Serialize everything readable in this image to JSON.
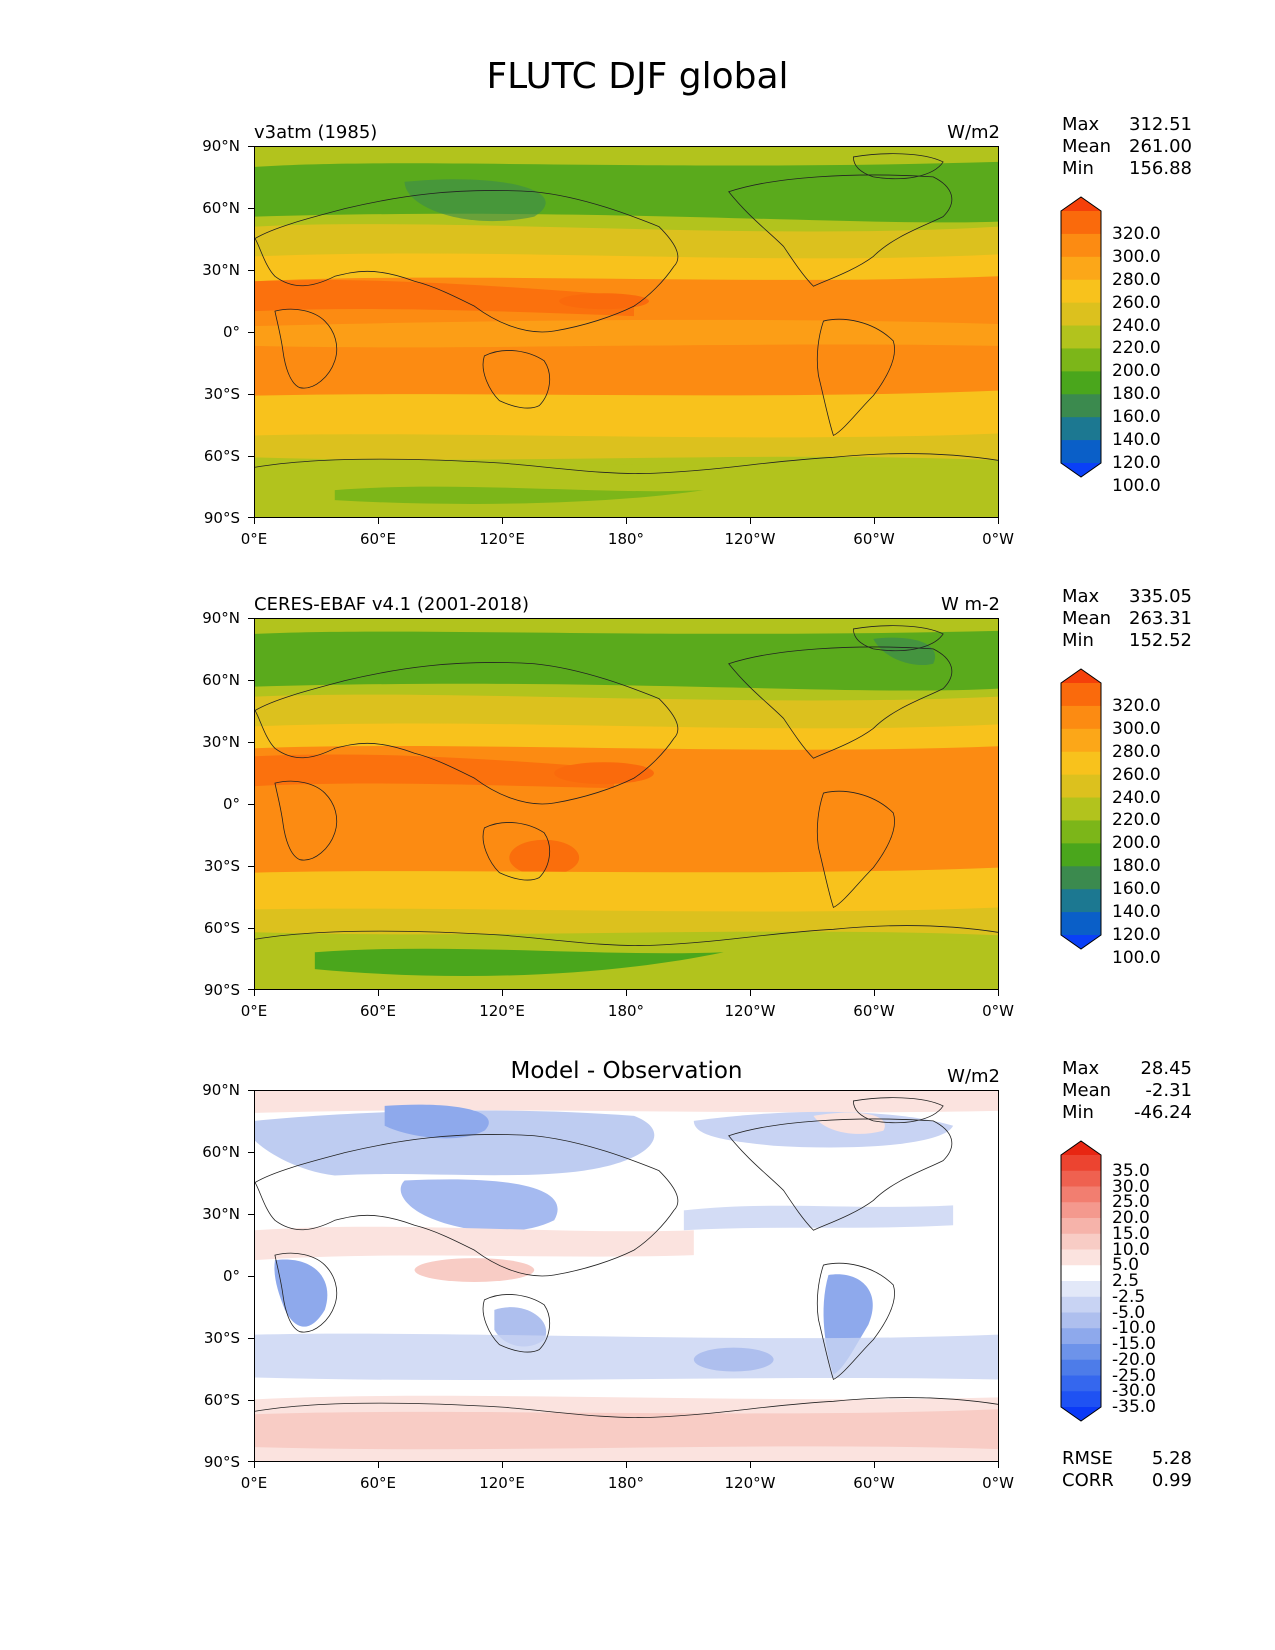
{
  "title": "FLUTC DJF global",
  "lat_labels": [
    "90°N",
    "60°N",
    "30°N",
    "0°",
    "30°S",
    "60°S",
    "90°S"
  ],
  "lon_labels": [
    "0°E",
    "60°E",
    "120°E",
    "180°",
    "120°W",
    "60°W",
    "0°W"
  ],
  "panels": [
    {
      "left_title": "v3atm (1985)",
      "center_title": "",
      "units": "W/m2",
      "stats": [
        {
          "label": "Max",
          "value": "312.51"
        },
        {
          "label": "Mean",
          "value": "261.00"
        },
        {
          "label": "Min",
          "value": "156.88"
        }
      ],
      "colorbar": {
        "colors": [
          "#0a40f7",
          "#0a5fc8",
          "#1c7891",
          "#3b8a4e",
          "#4aa61c",
          "#7cb619",
          "#b2c31d",
          "#dcc11e",
          "#f8c21c",
          "#fca718",
          "#fc8b12",
          "#fa6a0c",
          "#f5400a"
        ],
        "labels": [
          "320.0",
          "300.0",
          "280.0",
          "260.0",
          "240.0",
          "220.0",
          "200.0",
          "180.0",
          "160.0",
          "140.0",
          "120.0",
          "100.0"
        ]
      },
      "footer": []
    },
    {
      "left_title": "CERES-EBAF v4.1 (2001-2018)",
      "center_title": "",
      "units": "W m-2",
      "stats": [
        {
          "label": "Max",
          "value": "335.05"
        },
        {
          "label": "Mean",
          "value": "263.31"
        },
        {
          "label": "Min",
          "value": "152.52"
        }
      ],
      "colorbar": {
        "colors": [
          "#0a40f7",
          "#0a5fc8",
          "#1c7891",
          "#3b8a4e",
          "#4aa61c",
          "#7cb619",
          "#b2c31d",
          "#dcc11e",
          "#f8c21c",
          "#fca718",
          "#fc8b12",
          "#fa6a0c",
          "#f5400a"
        ],
        "labels": [
          "320.0",
          "300.0",
          "280.0",
          "260.0",
          "240.0",
          "220.0",
          "200.0",
          "180.0",
          "160.0",
          "140.0",
          "120.0",
          "100.0"
        ]
      },
      "footer": []
    },
    {
      "left_title": "",
      "center_title": "Model - Observation",
      "units": "W/m2",
      "stats": [
        {
          "label": "Max",
          "value": "28.45"
        },
        {
          "label": "Mean",
          "value": "-2.31"
        },
        {
          "label": "Min",
          "value": "-46.24"
        }
      ],
      "colorbar": {
        "colors": [
          "#0b3af7",
          "#1f52f3",
          "#3567ee",
          "#4d7ce9",
          "#6d93ea",
          "#8ea9ec",
          "#aebfee",
          "#c8d3f3",
          "#e2e8f8",
          "#ffffff",
          "#fbe3df",
          "#f8ccc5",
          "#f6b3aa",
          "#f4998e",
          "#f27e70",
          "#ef6150",
          "#ec4430",
          "#e82612"
        ],
        "labels": [
          "35.0",
          "30.0",
          "25.0",
          "20.0",
          "15.0",
          "10.0",
          "5.0",
          "2.5",
          "-2.5",
          "-5.0",
          "-10.0",
          "-15.0",
          "-20.0",
          "-25.0",
          "-30.0",
          "-35.0"
        ]
      },
      "footer": [
        {
          "label": "RMSE",
          "value": "5.28"
        },
        {
          "label": "CORR",
          "value": "0.99"
        }
      ]
    }
  ]
}
